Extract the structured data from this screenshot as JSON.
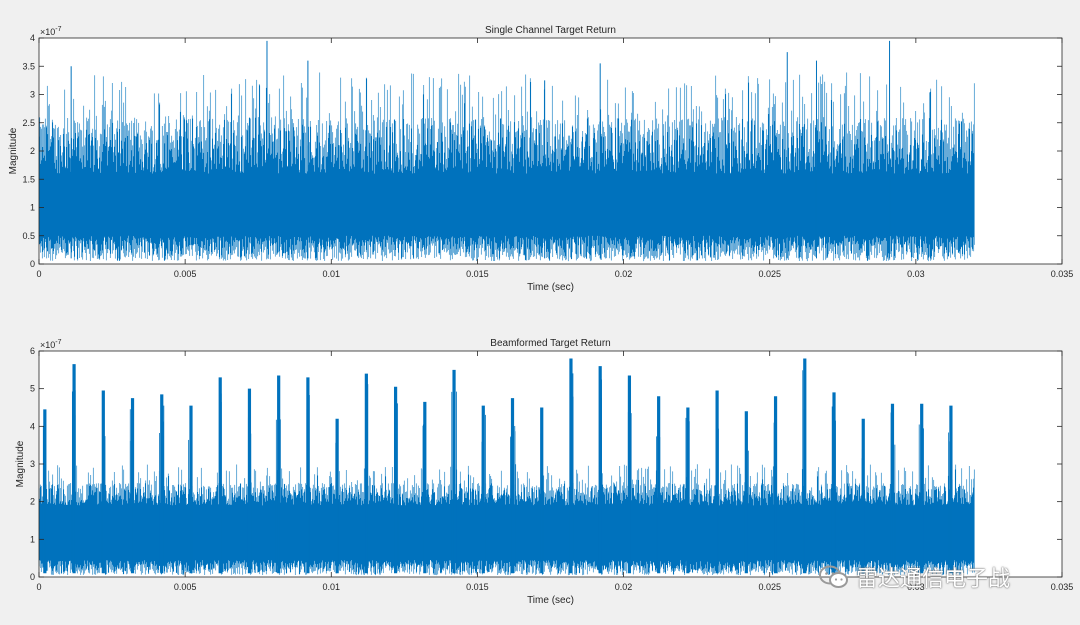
{
  "colors": {
    "figure_bg": "#f0f0f0",
    "axes_bg": "#ffffff",
    "axis": "#262626",
    "series": "#0072bd"
  },
  "watermark": {
    "text": "雷达通信电子战",
    "icon": "wechat-icon"
  },
  "chart_data": [
    {
      "type": "line",
      "title": "Single Channel Target Return",
      "xlabel": "Time (sec)",
      "ylabel": "Magnitude",
      "y_exponent_label": "×10",
      "y_exponent": "-7",
      "xlim": [
        0,
        0.035
      ],
      "ylim": [
        0,
        4
      ],
      "xticks": [
        0,
        0.005,
        0.01,
        0.015,
        0.02,
        0.025,
        0.03,
        0.035
      ],
      "xtick_labels": [
        "0",
        "0.005",
        "0.01",
        "0.015",
        "0.02",
        "0.025",
        "0.03",
        "0.035"
      ],
      "yticks": [
        0,
        0.5,
        1,
        1.5,
        2,
        2.5,
        3,
        3.5,
        4
      ],
      "ytick_labels": [
        "0",
        "0.5",
        "1",
        "1.5",
        "2",
        "2.5",
        "3",
        "3.5",
        "4"
      ],
      "grid": false,
      "series": [
        {
          "x_end": 0.032,
          "noise": {
            "band_low": 0.45,
            "band_high": 1.6,
            "spike_mean": 2.6,
            "spike_max": 3.4
          },
          "peaks": [
            {
              "x": 0.0078,
              "y": 3.95
            },
            {
              "x": 0.0092,
              "y": 3.6
            },
            {
              "x": 0.0192,
              "y": 3.55
            },
            {
              "x": 0.0256,
              "y": 3.75
            },
            {
              "x": 0.0266,
              "y": 3.6
            },
            {
              "x": 0.0291,
              "y": 3.95
            },
            {
              "x": 0.0011,
              "y": 3.5
            },
            {
              "x": 0.0173,
              "y": 3.25
            }
          ]
        }
      ]
    },
    {
      "type": "line",
      "title": "Beamformed Target Return",
      "xlabel": "Time (sec)",
      "ylabel": "Magnitude",
      "y_exponent_label": "×10",
      "y_exponent": "-7",
      "xlim": [
        0,
        0.035
      ],
      "ylim": [
        0,
        6
      ],
      "xticks": [
        0,
        0.005,
        0.01,
        0.015,
        0.02,
        0.025,
        0.03,
        0.035
      ],
      "xtick_labels": [
        "0",
        "0.005",
        "0.01",
        "0.015",
        "0.02",
        "0.025",
        "0.03",
        "0.035"
      ],
      "yticks": [
        0,
        1,
        2,
        3,
        4,
        5,
        6
      ],
      "ytick_labels": [
        "0",
        "1",
        "2",
        "3",
        "4",
        "5",
        "6"
      ],
      "grid": false,
      "series": [
        {
          "x_end": 0.032,
          "noise": {
            "band_low": 0.4,
            "band_high": 1.9,
            "spike_mean": 2.5,
            "spike_max": 3.0
          },
          "pulses": [
            {
              "x": 0.0002,
              "y": 4.45
            },
            {
              "x": 0.0012,
              "y": 5.65
            },
            {
              "x": 0.0022,
              "y": 4.95
            },
            {
              "x": 0.0032,
              "y": 4.75
            },
            {
              "x": 0.0042,
              "y": 4.85
            },
            {
              "x": 0.0052,
              "y": 4.55
            },
            {
              "x": 0.0062,
              "y": 5.3
            },
            {
              "x": 0.0072,
              "y": 5.0
            },
            {
              "x": 0.0082,
              "y": 5.35
            },
            {
              "x": 0.0092,
              "y": 5.3
            },
            {
              "x": 0.0102,
              "y": 4.2
            },
            {
              "x": 0.0112,
              "y": 5.4
            },
            {
              "x": 0.0122,
              "y": 5.05
            },
            {
              "x": 0.0132,
              "y": 4.65
            },
            {
              "x": 0.0142,
              "y": 5.5
            },
            {
              "x": 0.0152,
              "y": 4.55
            },
            {
              "x": 0.0162,
              "y": 4.75
            },
            {
              "x": 0.0172,
              "y": 4.5
            },
            {
              "x": 0.0182,
              "y": 5.8
            },
            {
              "x": 0.0192,
              "y": 5.6
            },
            {
              "x": 0.0202,
              "y": 5.35
            },
            {
              "x": 0.0212,
              "y": 4.8
            },
            {
              "x": 0.0222,
              "y": 4.5
            },
            {
              "x": 0.0232,
              "y": 4.95
            },
            {
              "x": 0.0242,
              "y": 4.4
            },
            {
              "x": 0.0252,
              "y": 4.8
            },
            {
              "x": 0.0262,
              "y": 5.8
            },
            {
              "x": 0.0272,
              "y": 4.9
            },
            {
              "x": 0.0282,
              "y": 4.2
            },
            {
              "x": 0.0292,
              "y": 4.6
            },
            {
              "x": 0.0302,
              "y": 4.6
            },
            {
              "x": 0.0312,
              "y": 4.55
            }
          ]
        }
      ]
    }
  ]
}
